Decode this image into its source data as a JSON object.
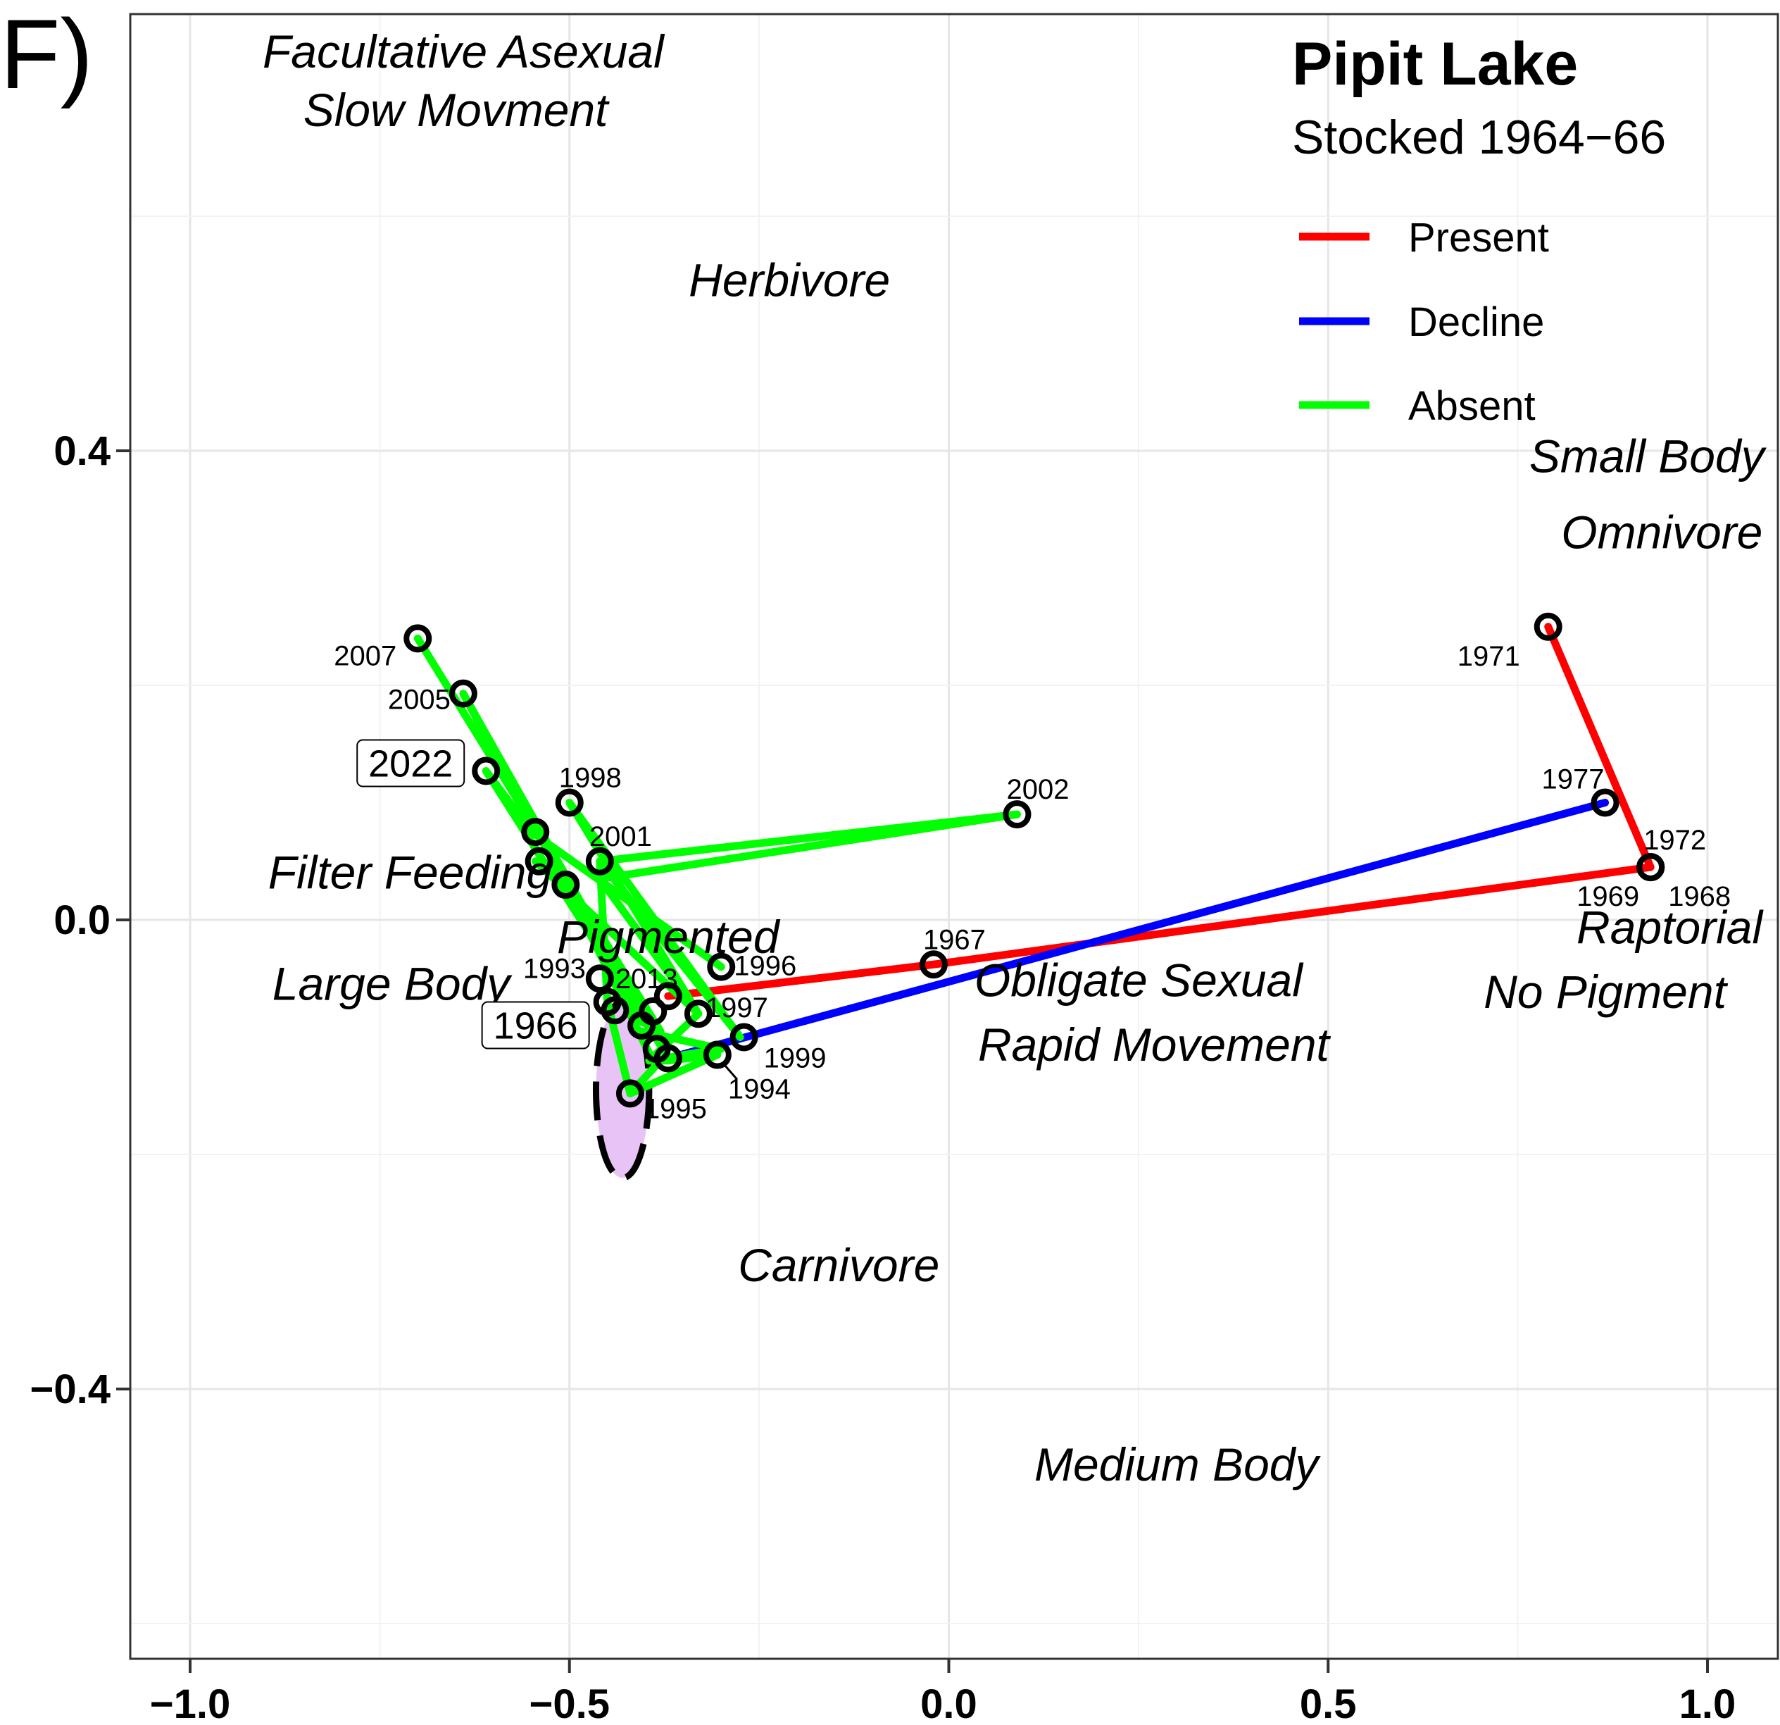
{
  "chart_data": {
    "type": "line",
    "panel_label": "F)",
    "title": "Pipit Lake",
    "subtitle": "Stocked 1964−66",
    "xlim": [
      -1.08,
      1.08
    ],
    "ylim": [
      -0.6,
      0.77
    ],
    "x_ticks": [
      -1.0,
      -0.5,
      0.0,
      0.5,
      1.0
    ],
    "x_tick_labels": [
      "−1.0",
      "−0.5",
      "0.0",
      "0.5",
      "1.0"
    ],
    "y_ticks": [
      -0.4,
      0.0,
      0.4
    ],
    "y_tick_labels": [
      "−0.4",
      "0.0",
      "0.4"
    ],
    "grid": true,
    "legend_position": "top-right",
    "series": [
      {
        "name": "Present",
        "color": "#ff0000",
        "x": [
          -0.37,
          -0.02,
          0.925,
          0.79,
          0.925
        ],
        "y": [
          -0.065,
          -0.038,
          0.045,
          0.25,
          0.045
        ]
      },
      {
        "name": "Decline",
        "color": "#0000ff",
        "x": [
          -0.37,
          0.865
        ],
        "y": [
          -0.118,
          0.1
        ]
      },
      {
        "name": "Absent",
        "color": "#00ff00",
        "segments": [
          {
            "x": [
              -0.7,
              -0.38,
              -0.41,
              -0.64,
              -0.37,
              -0.61,
              -0.55,
              -0.3
            ],
            "y": [
              0.24,
              -0.095,
              -0.085,
              0.193,
              -0.117,
              0.127,
              0.075,
              -0.04
            ]
          },
          {
            "x": [
              -0.545,
              -0.33,
              -0.5,
              -0.275,
              -0.46,
              -0.45,
              -0.42
            ],
            "y": [
              0.05,
              -0.08,
              0.1,
              -0.1,
              0.05,
              -0.07,
              -0.148
            ]
          },
          {
            "x": [
              -0.46,
              0.09,
              -0.46,
              -0.33,
              -0.395,
              -0.3,
              -0.405
            ],
            "y": [
              0.05,
              0.09,
              0.035,
              -0.08,
              -0.12,
              -0.11,
              -0.095
            ]
          },
          {
            "x": [
              -0.505,
              -0.39,
              -0.37,
              -0.305,
              -0.42,
              -0.38
            ],
            "y": [
              0.03,
              -0.12,
              -0.12,
              -0.115,
              -0.148,
              -0.12
            ]
          }
        ]
      }
    ],
    "points": [
      {
        "year": "2007",
        "x": -0.7,
        "y": 0.24
      },
      {
        "year": "2005",
        "x": -0.64,
        "y": 0.193
      },
      {
        "year": "2022",
        "x": -0.61,
        "y": 0.127,
        "boxed": true
      },
      {
        "year": "1998",
        "x": -0.5,
        "y": 0.1
      },
      {
        "year": "2002",
        "x": 0.09,
        "y": 0.09
      },
      {
        "year": "2001",
        "x": -0.46,
        "y": 0.05
      },
      {
        "year": "",
        "x": -0.545,
        "y": 0.075
      },
      {
        "year": "",
        "x": -0.54,
        "y": 0.05
      },
      {
        "year": "",
        "x": -0.505,
        "y": 0.03
      },
      {
        "year": "1967",
        "x": -0.02,
        "y": -0.038
      },
      {
        "year": "1996",
        "x": -0.3,
        "y": -0.04
      },
      {
        "year": "1993",
        "x": -0.46,
        "y": -0.05
      },
      {
        "year": "2013",
        "x": -0.37,
        "y": -0.065
      },
      {
        "year": "1966",
        "x": -0.45,
        "y": -0.07,
        "boxed": true
      },
      {
        "year": "1997",
        "x": -0.33,
        "y": -0.08
      },
      {
        "year": "",
        "x": -0.39,
        "y": -0.078
      },
      {
        "year": "",
        "x": -0.44,
        "y": -0.077
      },
      {
        "year": "",
        "x": -0.405,
        "y": -0.09
      },
      {
        "year": "1999",
        "x": -0.27,
        "y": -0.1
      },
      {
        "year": "",
        "x": -0.385,
        "y": -0.11
      },
      {
        "year": "",
        "x": -0.37,
        "y": -0.118
      },
      {
        "year": "1994",
        "x": -0.305,
        "y": -0.115
      },
      {
        "year": "1995",
        "x": -0.42,
        "y": -0.148
      },
      {
        "year": "1971",
        "x": 0.79,
        "y": 0.25
      },
      {
        "year": "1977",
        "x": 0.865,
        "y": 0.1
      },
      {
        "year": "1972",
        "x": 0.925,
        "y": 0.045
      },
      {
        "year": "1969",
        "x": 0.925,
        "y": 0.045
      },
      {
        "year": "1968",
        "x": 0.925,
        "y": 0.045
      }
    ],
    "ellipse": {
      "cx": -0.43,
      "cy": -0.145,
      "rx": 0.035,
      "ry": 0.075,
      "fill": "#e8c3f5",
      "stroke": "#000000"
    },
    "trait_labels": [
      {
        "text": "Facultative Asexual",
        "x": -0.64,
        "y": 0.74
      },
      {
        "text": "Slow Movment",
        "x": -0.65,
        "y": 0.69
      },
      {
        "text": "Herbivore",
        "x": -0.21,
        "y": 0.545
      },
      {
        "text": "Small Body",
        "x": 0.92,
        "y": 0.395
      },
      {
        "text": "Omnivore",
        "x": 0.94,
        "y": 0.33
      },
      {
        "text": "Filter Feeding",
        "x": -0.71,
        "y": 0.04
      },
      {
        "text": "Pigmented",
        "x": -0.37,
        "y": -0.015
      },
      {
        "text": "Large Body",
        "x": -0.735,
        "y": -0.055
      },
      {
        "text": "Obligate Sexual",
        "x": 0.25,
        "y": -0.052
      },
      {
        "text": "Rapid Movement",
        "x": 0.27,
        "y": -0.107
      },
      {
        "text": "Raptorial",
        "x": 0.95,
        "y": -0.007
      },
      {
        "text": "No Pigment",
        "x": 0.865,
        "y": -0.062
      },
      {
        "text": "Carnivore",
        "x": -0.145,
        "y": -0.295
      },
      {
        "text": "Medium Body",
        "x": 0.3,
        "y": -0.465
      }
    ]
  }
}
